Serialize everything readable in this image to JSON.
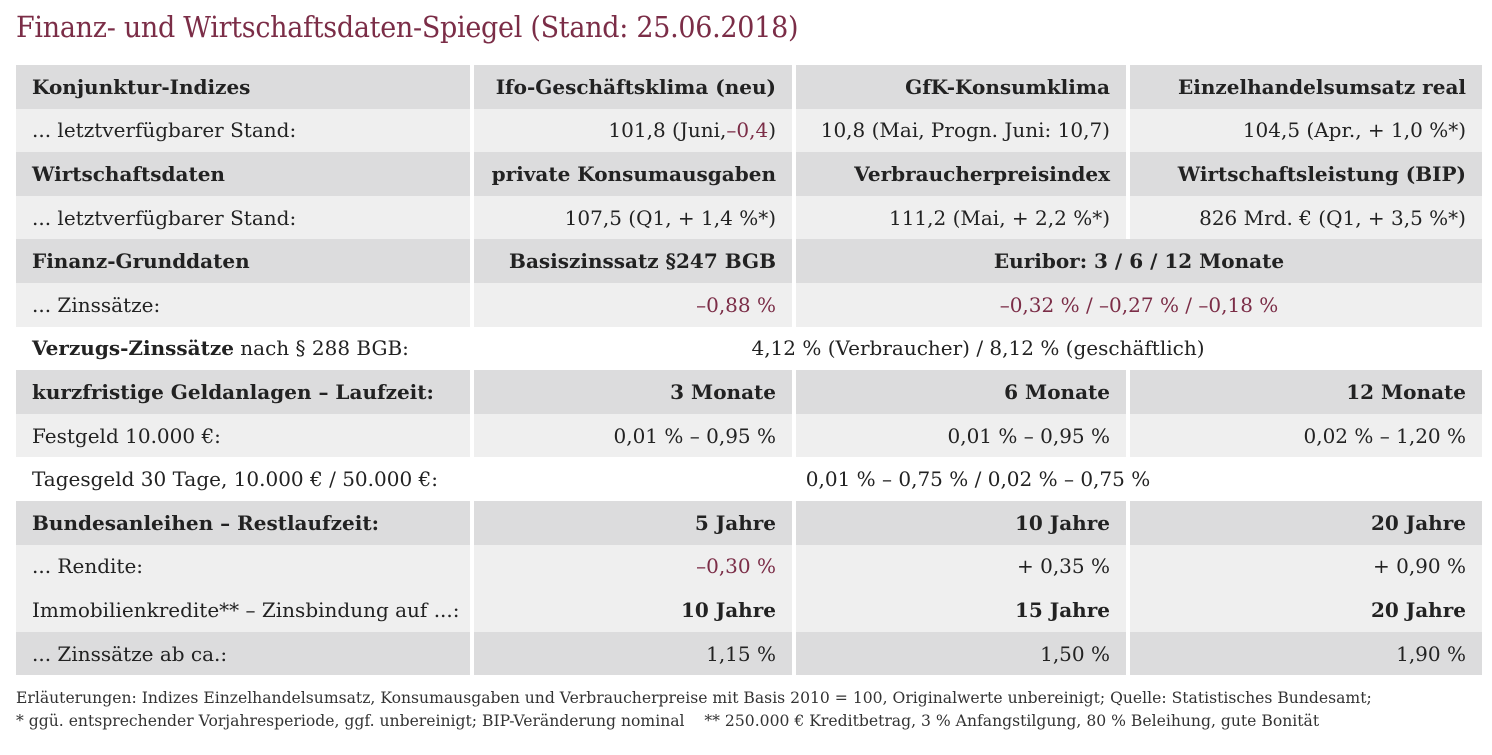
{
  "title": "Finanz- und Wirtschaftsdaten-Spiegel (Stand: 25.06.2018)",
  "konjunktur": {
    "label": "Konjunktur-Indizes",
    "col1": "Ifo-Geschäftsklima (neu)",
    "col2": "GfK-Konsumklima",
    "col3": "Einzelhandelsumsatz real",
    "stand_label": "... letztverfügbarer Stand:",
    "v1_pre": "101,8 (Juni, ",
    "v1_neg": "–0,4",
    "v1_post": ")",
    "v2": "10,8 (Mai, Progn. Juni: 10,7)",
    "v3": "104,5 (Apr., + 1,0 %*)"
  },
  "wirtschaft": {
    "label": "Wirtschaftsdaten",
    "col1": "private Konsumausgaben",
    "col2": "Verbraucherpreisindex",
    "col3": "Wirtschaftsleistung (BIP)",
    "stand_label": "... letztverfügbarer Stand:",
    "v1": "107,5 (Q1, + 1,4 %*)",
    "v2": "111,2 (Mai, + 2,2 %*)",
    "v3": "826 Mrd. € (Q1, + 3,5 %*)"
  },
  "finanz": {
    "label": "Finanz-Grunddaten",
    "col1": "Basiszinssatz §247 BGB",
    "col23": "Euribor: 3 / 6 / 12 Monate",
    "zins_label": "... Zinssätze:",
    "v1": "–0,88 %",
    "v23": "–0,32 % / –0,27 % / –0,18 %"
  },
  "verzug": {
    "label_bold": "Verzugs-Zinssätze",
    "label_rest": " nach § 288 BGB:",
    "value": "4,12 % (Verbraucher) / 8,12 % (geschäftlich)"
  },
  "geld": {
    "label": "kurzfristige Geldanlagen – Laufzeit:",
    "col1": "3 Monate",
    "col2": "6 Monate",
    "col3": "12 Monate",
    "fest_label": "Festgeld 10.000 €:",
    "fest1": "0,01 % – 0,95 %",
    "fest2": "0,01 % – 0,95 %",
    "fest3": "0,02 % – 1,20 %",
    "tages_label": "Tagesgeld 30 Tage, 10.000 € / 50.000 €:",
    "tages_value": "0,01 % – 0,75 % / 0,02 % – 0,75 %"
  },
  "anleihen": {
    "label": "Bundesanleihen – Restlaufzeit:",
    "col1": "5 Jahre",
    "col2": "10 Jahre",
    "col3": "20 Jahre",
    "rendite_label": "... Rendite:",
    "r1": "–0,30 %",
    "r2": "+ 0,35 %",
    "r3": "+ 0,90 %"
  },
  "immo": {
    "label": "Immobilienkredite** – Zinsbindung auf ...:",
    "col1": "10 Jahre",
    "col2": "15 Jahre",
    "col3": "20 Jahre",
    "zins_label": "... Zinssätze ab ca.:",
    "z1": "1,15 %",
    "z2": "1,50 %",
    "z3": "1,90 %"
  },
  "footnote": {
    "line1": "Erläuterungen: Indizes Einzelhandelsumsatz, Konsumausgaben und Verbraucherpreise mit Basis 2010 = 100, Originalwerte unbereinigt; Quelle: Statistisches Bundesamt;",
    "line2": "* ggü. entsprechender Vorjahresperiode, ggf. unbereinigt; BIP-Veränderung nominal    ** 250.000 € Kreditbetrag, 3 % Anfangstilgung, 80 % Beleihung, gute Bonität"
  },
  "colors": {
    "accent": "#7b2d47",
    "header_bg": "#dcdcdd",
    "row_bg": "#efefef"
  }
}
